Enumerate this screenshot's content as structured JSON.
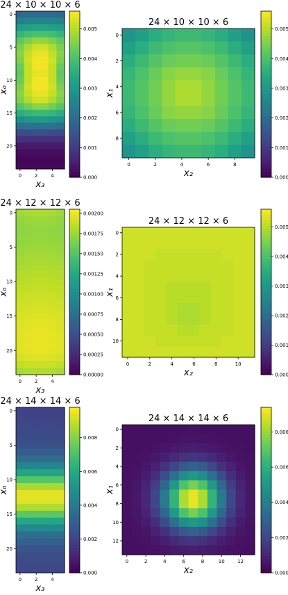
{
  "chart_data": [
    {
      "type": "heatmap",
      "title": "24 × 10 × 10 × 6",
      "xlabel": "x₃",
      "ylabel": "x₀",
      "xticks": [
        "0",
        "2",
        "4"
      ],
      "yticks": [
        "0",
        "5",
        "10",
        "15",
        "20"
      ],
      "shape": [
        24,
        6
      ],
      "colorbar": {
        "min": 0,
        "max": 0.0056,
        "ticks": [
          "0.000",
          "0.001",
          "0.002",
          "0.003",
          "0.004",
          "0.005"
        ]
      },
      "values": [
        [
          0.0019,
          0.002,
          0.002,
          0.002,
          0.002,
          0.0019
        ],
        [
          0.0024,
          0.0025,
          0.0025,
          0.0025,
          0.0025,
          0.0024
        ],
        [
          0.0031,
          0.0032,
          0.0033,
          0.0033,
          0.0032,
          0.0031
        ],
        [
          0.0037,
          0.0039,
          0.004,
          0.004,
          0.0039,
          0.0037
        ],
        [
          0.0042,
          0.0045,
          0.0047,
          0.0047,
          0.0045,
          0.0042
        ],
        [
          0.0045,
          0.0049,
          0.0052,
          0.0052,
          0.0049,
          0.0045
        ],
        [
          0.0046,
          0.0051,
          0.0054,
          0.0054,
          0.0051,
          0.0046
        ],
        [
          0.0045,
          0.0052,
          0.0055,
          0.0055,
          0.0052,
          0.0045
        ],
        [
          0.0043,
          0.0051,
          0.0055,
          0.0055,
          0.0051,
          0.0043
        ],
        [
          0.0042,
          0.0051,
          0.0054,
          0.0054,
          0.0051,
          0.0042
        ],
        [
          0.0043,
          0.0051,
          0.0055,
          0.0055,
          0.0051,
          0.0043
        ],
        [
          0.0045,
          0.0052,
          0.0055,
          0.0055,
          0.0052,
          0.0045
        ],
        [
          0.0046,
          0.0051,
          0.0054,
          0.0054,
          0.0051,
          0.0046
        ],
        [
          0.0045,
          0.0049,
          0.0052,
          0.0052,
          0.0049,
          0.0045
        ],
        [
          0.0041,
          0.0044,
          0.0046,
          0.0046,
          0.0044,
          0.0041
        ],
        [
          0.0035,
          0.0037,
          0.0038,
          0.0038,
          0.0037,
          0.0035
        ],
        [
          0.0028,
          0.0029,
          0.003,
          0.003,
          0.0029,
          0.0028
        ],
        [
          0.002,
          0.0021,
          0.0021,
          0.0021,
          0.0021,
          0.002
        ],
        [
          0.0013,
          0.0013,
          0.0014,
          0.0014,
          0.0013,
          0.0013
        ],
        [
          0.0008,
          0.0008,
          0.0008,
          0.0008,
          0.0008,
          0.0008
        ],
        [
          0.0004,
          0.0004,
          0.0004,
          0.0004,
          0.0004,
          0.0004
        ],
        [
          0.0002,
          0.0002,
          0.0002,
          0.0002,
          0.0002,
          0.0002
        ],
        [
          0.0001,
          0.0001,
          0.0001,
          0.0001,
          0.0001,
          0.0001
        ],
        [
          0.0001,
          0.0001,
          0.0001,
          0.0001,
          0.0001,
          0.0001
        ]
      ]
    },
    {
      "type": "heatmap",
      "title": "24 × 10 × 10 × 6",
      "xlabel": "x₂",
      "ylabel": "x₁",
      "xticks": [
        "0",
        "2",
        "4",
        "6",
        "8"
      ],
      "yticks": [
        "0",
        "2",
        "4",
        "6",
        "8"
      ],
      "shape": [
        10,
        10
      ],
      "colorbar": {
        "min": 0,
        "max": 0.0056,
        "ticks": [
          "0.000",
          "0.001",
          "0.002",
          "0.003",
          "0.004",
          "0.005"
        ]
      },
      "values": [
        [
          0.0029,
          0.0032,
          0.0035,
          0.0037,
          0.0038,
          0.0038,
          0.0037,
          0.0035,
          0.0032,
          0.0029
        ],
        [
          0.0032,
          0.0035,
          0.0038,
          0.004,
          0.0041,
          0.0041,
          0.004,
          0.0038,
          0.0035,
          0.0032
        ],
        [
          0.0035,
          0.0038,
          0.0041,
          0.0043,
          0.0044,
          0.0044,
          0.0043,
          0.0041,
          0.0038,
          0.0035
        ],
        [
          0.0037,
          0.004,
          0.0043,
          0.0046,
          0.0047,
          0.0047,
          0.0046,
          0.0043,
          0.004,
          0.0037
        ],
        [
          0.0038,
          0.0041,
          0.0044,
          0.0047,
          0.0049,
          0.0049,
          0.0047,
          0.0044,
          0.0041,
          0.0038
        ],
        [
          0.0038,
          0.0041,
          0.0044,
          0.0047,
          0.0049,
          0.0049,
          0.0047,
          0.0044,
          0.0041,
          0.0038
        ],
        [
          0.0037,
          0.004,
          0.0043,
          0.0046,
          0.0047,
          0.0047,
          0.0046,
          0.0043,
          0.004,
          0.0037
        ],
        [
          0.0035,
          0.0038,
          0.0041,
          0.0043,
          0.0044,
          0.0044,
          0.0043,
          0.0041,
          0.0038,
          0.0035
        ],
        [
          0.0032,
          0.0035,
          0.0038,
          0.004,
          0.0041,
          0.0041,
          0.004,
          0.0038,
          0.0035,
          0.0032
        ],
        [
          0.0029,
          0.0032,
          0.0035,
          0.0037,
          0.0038,
          0.0038,
          0.0037,
          0.0035,
          0.0032,
          0.0029
        ]
      ]
    },
    {
      "type": "heatmap",
      "title": "24 × 12 × 12 × 6",
      "xlabel": "x₃",
      "ylabel": "x₀",
      "xticks": [
        "0",
        "2",
        "4"
      ],
      "yticks": [
        "0",
        "5",
        "10",
        "15",
        "20"
      ],
      "shape": [
        24,
        6
      ],
      "colorbar": {
        "min": 0,
        "max": 0.00205,
        "ticks": [
          "0.00000",
          "0.00025",
          "0.00050",
          "0.00075",
          "0.00100",
          "0.00125",
          "0.00150",
          "0.00175",
          "0.00200"
        ]
      },
      "values": [
        [
          0.00176,
          0.00178,
          0.00179,
          0.00179,
          0.00178,
          0.00176
        ],
        [
          0.00172,
          0.00174,
          0.00175,
          0.00175,
          0.00174,
          0.00172
        ],
        [
          0.0017,
          0.00172,
          0.00173,
          0.00173,
          0.00172,
          0.0017
        ],
        [
          0.0017,
          0.00171,
          0.00172,
          0.00172,
          0.00171,
          0.0017
        ],
        [
          0.00171,
          0.00172,
          0.00173,
          0.00173,
          0.00172,
          0.00171
        ],
        [
          0.00173,
          0.00174,
          0.00175,
          0.00175,
          0.00174,
          0.00173
        ],
        [
          0.00175,
          0.00176,
          0.00177,
          0.00177,
          0.00176,
          0.00175
        ],
        [
          0.00177,
          0.00178,
          0.00179,
          0.00179,
          0.00178,
          0.00177
        ],
        [
          0.00179,
          0.0018,
          0.00181,
          0.00181,
          0.0018,
          0.00179
        ],
        [
          0.00181,
          0.00182,
          0.00183,
          0.00183,
          0.00182,
          0.00181
        ],
        [
          0.00183,
          0.00184,
          0.00185,
          0.00185,
          0.00184,
          0.00183
        ],
        [
          0.00185,
          0.00186,
          0.00187,
          0.00187,
          0.00186,
          0.00185
        ],
        [
          0.00187,
          0.00188,
          0.00189,
          0.00189,
          0.00188,
          0.00187
        ],
        [
          0.00189,
          0.0019,
          0.00191,
          0.00191,
          0.0019,
          0.00189
        ],
        [
          0.00191,
          0.00192,
          0.00193,
          0.00193,
          0.00192,
          0.00191
        ],
        [
          0.00193,
          0.00194,
          0.00195,
          0.00195,
          0.00194,
          0.00193
        ],
        [
          0.00194,
          0.00196,
          0.00197,
          0.00197,
          0.00196,
          0.00194
        ],
        [
          0.00195,
          0.00197,
          0.00198,
          0.00198,
          0.00197,
          0.00195
        ],
        [
          0.00196,
          0.00198,
          0.00199,
          0.00199,
          0.00198,
          0.00196
        ],
        [
          0.00196,
          0.00198,
          0.00199,
          0.00199,
          0.00198,
          0.00196
        ],
        [
          0.00195,
          0.00197,
          0.00198,
          0.00198,
          0.00197,
          0.00195
        ],
        [
          0.00192,
          0.00194,
          0.00195,
          0.00195,
          0.00194,
          0.00192
        ],
        [
          0.00186,
          0.00188,
          0.00189,
          0.00189,
          0.00188,
          0.00186
        ],
        [
          0.00178,
          0.0018,
          0.00181,
          0.00181,
          0.0018,
          0.00178
        ]
      ]
    },
    {
      "type": "heatmap",
      "title": "24 × 12 × 12 × 6",
      "xlabel": "x₂",
      "ylabel": "x₁",
      "xticks": [
        "0",
        "2",
        "4",
        "6",
        "8",
        "10"
      ],
      "yticks": [
        "0",
        "2",
        "4",
        "6",
        "8",
        "10"
      ],
      "shape": [
        12,
        12
      ],
      "colorbar": {
        "min": 0,
        "max": 0.0056,
        "ticks": [
          "0.000",
          "0.001",
          "0.002",
          "0.003",
          "0.004",
          "0.005"
        ]
      },
      "values": [
        [
          0.0052,
          0.0052,
          0.0052,
          0.0052,
          0.0052,
          0.0052,
          0.0052,
          0.0052,
          0.0052,
          0.0052,
          0.0052,
          0.0052
        ],
        [
          0.0052,
          0.0052,
          0.0052,
          0.0052,
          0.0052,
          0.0052,
          0.0052,
          0.0052,
          0.0052,
          0.0052,
          0.0052,
          0.0052
        ],
        [
          0.0052,
          0.0052,
          0.0052,
          0.0051,
          0.0051,
          0.0051,
          0.0051,
          0.0051,
          0.0051,
          0.0052,
          0.0052,
          0.0052
        ],
        [
          0.0052,
          0.0052,
          0.0051,
          0.0051,
          0.0051,
          0.0051,
          0.0051,
          0.0051,
          0.0051,
          0.0051,
          0.0052,
          0.0052
        ],
        [
          0.0052,
          0.0052,
          0.0051,
          0.0051,
          0.0051,
          0.0051,
          0.0051,
          0.0051,
          0.0051,
          0.0051,
          0.0052,
          0.0052
        ],
        [
          0.0052,
          0.0052,
          0.0051,
          0.0051,
          0.005,
          0.005,
          0.005,
          0.005,
          0.0051,
          0.0051,
          0.0052,
          0.0052
        ],
        [
          0.0052,
          0.0052,
          0.0051,
          0.0051,
          0.005,
          0.005,
          0.005,
          0.005,
          0.0051,
          0.0051,
          0.0052,
          0.0052
        ],
        [
          0.0052,
          0.0052,
          0.0051,
          0.0051,
          0.005,
          0.0049,
          0.0049,
          0.005,
          0.0051,
          0.0051,
          0.0052,
          0.0052
        ],
        [
          0.0052,
          0.0052,
          0.0051,
          0.0051,
          0.005,
          0.0049,
          0.0049,
          0.005,
          0.0051,
          0.0051,
          0.0052,
          0.0052
        ],
        [
          0.0052,
          0.0052,
          0.0051,
          0.0051,
          0.0051,
          0.005,
          0.005,
          0.0051,
          0.0051,
          0.0051,
          0.0052,
          0.0052
        ],
        [
          0.0052,
          0.0052,
          0.0052,
          0.0051,
          0.0051,
          0.0051,
          0.0051,
          0.0051,
          0.0051,
          0.0052,
          0.0052,
          0.0052
        ],
        [
          0.0052,
          0.0052,
          0.0052,
          0.0052,
          0.0052,
          0.0052,
          0.0052,
          0.0052,
          0.0052,
          0.0052,
          0.0052,
          0.0052
        ]
      ]
    },
    {
      "type": "heatmap",
      "title": "24 × 14 × 14 × 6",
      "xlabel": "x₃",
      "ylabel": "x₀",
      "xticks": [
        "0",
        "2",
        "4"
      ],
      "yticks": [
        "0",
        "5",
        "10",
        "15",
        "20"
      ],
      "shape": [
        24,
        6
      ],
      "colorbar": {
        "min": 0,
        "max": 0.0098,
        "ticks": [
          "0.000",
          "0.002",
          "0.004",
          "0.006",
          "0.008"
        ]
      },
      "values": [
        [
          0.0019,
          0.0019,
          0.0019,
          0.0019,
          0.0019,
          0.0019
        ],
        [
          0.002,
          0.002,
          0.002,
          0.002,
          0.002,
          0.002
        ],
        [
          0.0021,
          0.0021,
          0.0021,
          0.0021,
          0.0021,
          0.0021
        ],
        [
          0.0022,
          0.0022,
          0.0022,
          0.0022,
          0.0022,
          0.0022
        ],
        [
          0.0023,
          0.0023,
          0.0023,
          0.0023,
          0.0023,
          0.0023
        ],
        [
          0.0025,
          0.0025,
          0.0025,
          0.0025,
          0.0025,
          0.0025
        ],
        [
          0.0029,
          0.0029,
          0.0029,
          0.0029,
          0.0029,
          0.0029
        ],
        [
          0.0035,
          0.0035,
          0.0035,
          0.0035,
          0.0035,
          0.0035
        ],
        [
          0.0045,
          0.0045,
          0.0045,
          0.0045,
          0.0045,
          0.0045
        ],
        [
          0.0058,
          0.0058,
          0.0058,
          0.0058,
          0.0058,
          0.0058
        ],
        [
          0.0072,
          0.0072,
          0.0072,
          0.0072,
          0.0072,
          0.0072
        ],
        [
          0.0085,
          0.0085,
          0.0085,
          0.0085,
          0.0085,
          0.0085
        ],
        [
          0.0094,
          0.0094,
          0.0094,
          0.0094,
          0.0094,
          0.0094
        ],
        [
          0.0094,
          0.0094,
          0.0094,
          0.0094,
          0.0094,
          0.0094
        ],
        [
          0.0086,
          0.0086,
          0.0086,
          0.0086,
          0.0086,
          0.0086
        ],
        [
          0.0073,
          0.0073,
          0.0073,
          0.0073,
          0.0073,
          0.0073
        ],
        [
          0.0059,
          0.0059,
          0.0059,
          0.0059,
          0.0059,
          0.0059
        ],
        [
          0.0046,
          0.0046,
          0.0046,
          0.0046,
          0.0046,
          0.0046
        ],
        [
          0.0036,
          0.0036,
          0.0036,
          0.0036,
          0.0036,
          0.0036
        ],
        [
          0.003,
          0.003,
          0.003,
          0.003,
          0.003,
          0.003
        ],
        [
          0.0026,
          0.0026,
          0.0026,
          0.0026,
          0.0026,
          0.0026
        ],
        [
          0.0023,
          0.0023,
          0.0023,
          0.0023,
          0.0023,
          0.0023
        ],
        [
          0.0022,
          0.0022,
          0.0022,
          0.0022,
          0.0022,
          0.0022
        ],
        [
          0.0021,
          0.0021,
          0.0021,
          0.0021,
          0.0021,
          0.0021
        ]
      ]
    },
    {
      "type": "heatmap",
      "title": "24 × 14 × 14 × 6",
      "xlabel": "x₂",
      "ylabel": "x₁",
      "xticks": [
        "0",
        "2",
        "4",
        "6",
        "8",
        "10",
        "12"
      ],
      "yticks": [
        "0",
        "2",
        "4",
        "6",
        "8",
        "10",
        "12"
      ],
      "shape": [
        14,
        14
      ],
      "colorbar": {
        "min": 0,
        "max": 0.0094,
        "ticks": [
          "0.000",
          "0.002",
          "0.004",
          "0.006",
          "0.008"
        ]
      },
      "peak": {
        "row": 7.5,
        "col": 7.0,
        "value": 0.0093,
        "floor": 0.0004,
        "sigma": 2.2
      }
    }
  ]
}
